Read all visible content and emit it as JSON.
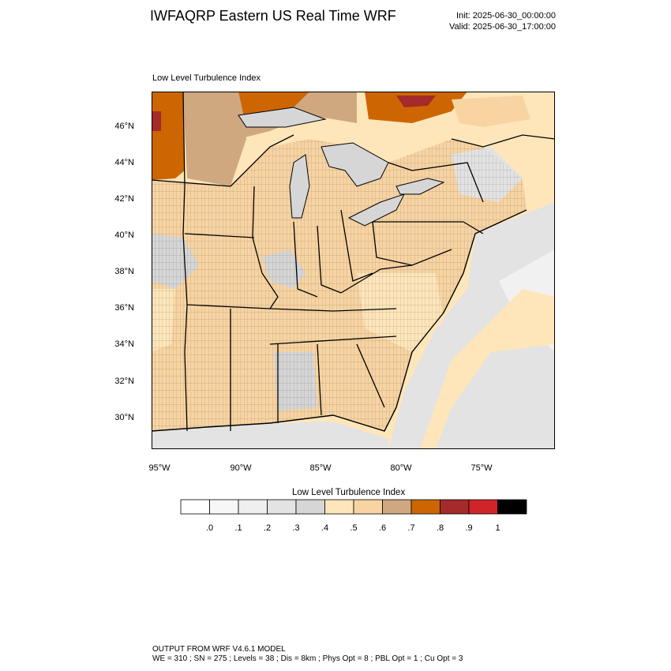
{
  "header": {
    "title": "IWFAQRP Eastern US Real Time WRF",
    "init": "Init: 2025-06-30_00:00:00",
    "valid": "Valid: 2025-06-30_17:00:00"
  },
  "map": {
    "subtitle": "Low Level Turbulence Index",
    "lat_labels": [
      "46°N",
      "44°N",
      "42°N",
      "40°N",
      "38°N",
      "36°N",
      "34°N",
      "32°N",
      "30°N"
    ],
    "lon_labels": [
      "95°W",
      "90°W",
      "85°W",
      "80°W",
      "75°W"
    ]
  },
  "colorbar": {
    "title": "Low Level Turbulence Index",
    "colors": [
      "#ffffff",
      "#f7f7f7",
      "#efefef",
      "#e3e3e3",
      "#d6d6d6",
      "#ffe6ba",
      "#f8d4a2",
      "#cfa880",
      "#cd6600",
      "#a52a2a",
      "#d12428",
      "#000000"
    ],
    "labels": [
      ".0",
      ".1",
      ".2",
      ".3",
      ".4",
      ".5",
      ".6",
      ".7",
      ".8",
      ".9",
      "1"
    ]
  },
  "footer": {
    "line1": "OUTPUT FROM WRF V4.6.1 MODEL",
    "line2": "WE = 310 ; SN = 275 ; Levels = 38 ; Dis = 8km ; Phys Opt = 8 ; PBL Opt = 1 ; Cu Opt = 3"
  }
}
